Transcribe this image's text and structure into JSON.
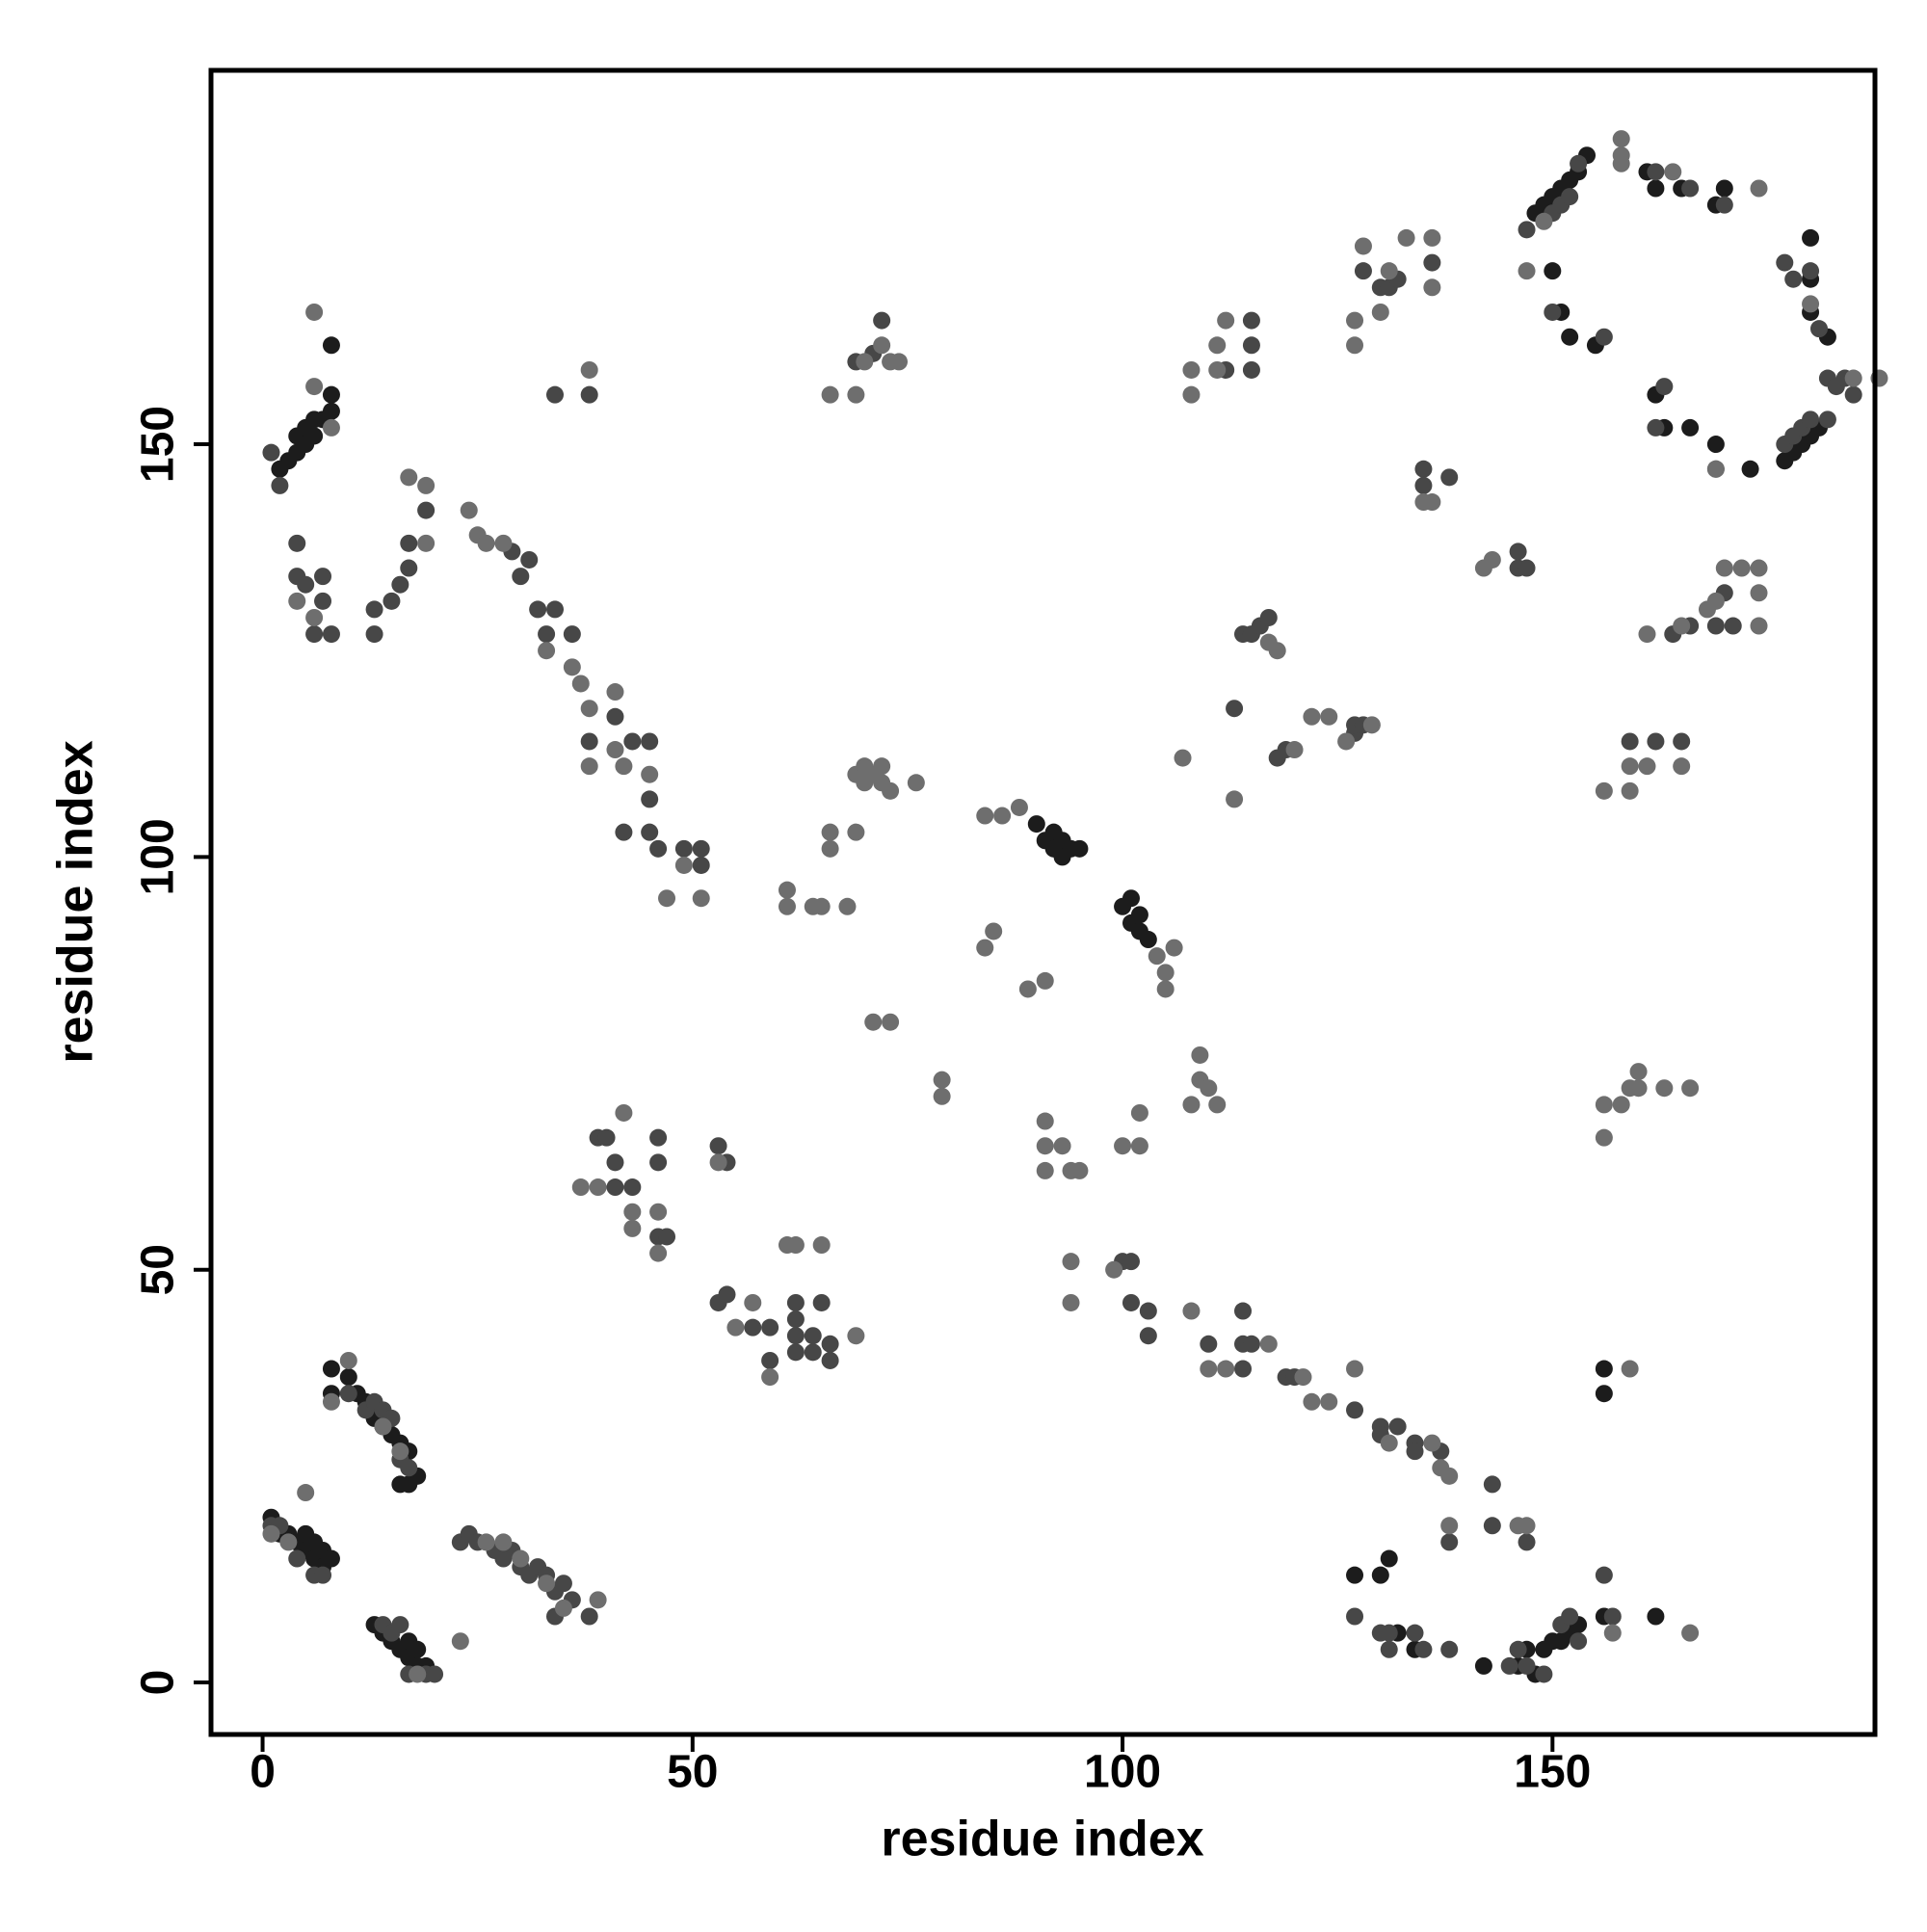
{
  "chart_data": {
    "type": "scatter",
    "xlabel": "residue index",
    "ylabel": "residue index",
    "xlim": [
      -6,
      187.5
    ],
    "ylim": [
      -6.3,
      195.3
    ],
    "xticks": [
      0,
      50,
      100,
      150
    ],
    "yticks": [
      0,
      50,
      100,
      150
    ],
    "series": [
      {
        "color": "#1c1c1c",
        "x": [
          1,
          2,
          3,
          4,
          5,
          5,
          6,
          6,
          7,
          7,
          8,
          8,
          8,
          10,
          11,
          12,
          13,
          14,
          15,
          16,
          17,
          16,
          17,
          18,
          13,
          14,
          15,
          16,
          17,
          17,
          18,
          18,
          19,
          2,
          3,
          4,
          4,
          5,
          5,
          6,
          6,
          7,
          8,
          8,
          8,
          90,
          91,
          92,
          92,
          93,
          93,
          94,
          95,
          100,
          101,
          101,
          102,
          102,
          103,
          148,
          149,
          150,
          151,
          152,
          153,
          154,
          161,
          162,
          165,
          169,
          170,
          150,
          151,
          152,
          155,
          162,
          163,
          166,
          169,
          173,
          177,
          178,
          179,
          180,
          181,
          180,
          180,
          182,
          180,
          150,
          151,
          152,
          153,
          156,
          156,
          156,
          131,
          130,
          127,
          132,
          134,
          142,
          146,
          147,
          148,
          149,
          162
        ],
        "values": [
          20,
          18,
          18,
          17,
          18,
          16,
          17,
          15,
          16,
          14,
          15,
          38,
          35,
          37,
          35,
          34,
          32,
          31,
          30,
          29,
          28,
          24,
          24,
          25,
          7,
          6,
          5,
          4,
          5,
          3,
          4,
          2,
          2,
          147,
          148,
          151,
          149,
          152,
          150,
          153,
          151,
          153,
          154,
          156,
          162,
          104,
          102,
          103,
          101,
          102,
          100,
          101,
          101,
          94,
          95,
          92,
          93,
          91,
          90,
          178,
          179,
          180,
          181,
          182,
          183,
          185,
          183,
          181,
          181,
          179,
          181,
          171,
          166,
          163,
          162,
          156,
          152,
          152,
          150,
          147,
          148,
          149,
          150,
          151,
          152,
          170,
          166,
          163,
          175,
          5,
          5,
          6,
          7,
          8,
          38,
          35,
          15,
          13,
          13,
          6,
          4,
          2,
          2,
          4,
          1,
          4,
          8
        ]
      },
      {
        "color": "#474747",
        "x": [
          1,
          2,
          4,
          6,
          7,
          10,
          12,
          13,
          14,
          15,
          16,
          17,
          14,
          15,
          16,
          17,
          19,
          20,
          23,
          24,
          25,
          27,
          28,
          29,
          30,
          31,
          32,
          33,
          34,
          35,
          36,
          34,
          38,
          1,
          2,
          4,
          4,
          5,
          7,
          7,
          6,
          8,
          13,
          13,
          15,
          16,
          17,
          17,
          19,
          34,
          38,
          29,
          30,
          31,
          32,
          33,
          34,
          36,
          38,
          41,
          43,
          45,
          45,
          42,
          45,
          46,
          49,
          51,
          51,
          39,
          40,
          41,
          41,
          43,
          46,
          46,
          46,
          47,
          53,
          54,
          53,
          54,
          57,
          59,
          59,
          62,
          62,
          62,
          62,
          64,
          64,
          65,
          66,
          66,
          100,
          101,
          101,
          103,
          103,
          110,
          114,
          114,
          114,
          115,
          119,
          120,
          127,
          130,
          130,
          132,
          134,
          134,
          137,
          143,
          138,
          143,
          147,
          127,
          127,
          128,
          118,
          119,
          113,
          114,
          115,
          116,
          117,
          135,
          135,
          138,
          146,
          146,
          147,
          159,
          162,
          165,
          164,
          166,
          169,
          170,
          171,
          112,
          115,
          115,
          115,
          128,
          130,
          131,
          132,
          136,
          72,
          69,
          71,
          147,
          150,
          151,
          152,
          153,
          162,
          166,
          170,
          150,
          156,
          163,
          162,
          169,
          177,
          178,
          179,
          180,
          182,
          177,
          178,
          180,
          181,
          182,
          183,
          184,
          185,
          127,
          130,
          131,
          131,
          134,
          135,
          138,
          145,
          146,
          147,
          149,
          151,
          152,
          153,
          157,
          156
        ],
        "values": [
          19,
          19,
          15,
          13,
          13,
          35,
          33,
          34,
          33,
          32,
          27,
          26,
          7,
          6,
          7,
          1,
          1,
          1,
          17,
          18,
          17,
          16,
          15,
          16,
          14,
          13,
          14,
          13,
          11,
          12,
          10,
          8,
          8,
          149,
          145,
          138,
          134,
          133,
          134,
          131,
          127,
          127,
          127,
          130,
          131,
          133,
          135,
          138,
          142,
          156,
          156,
          137,
          134,
          136,
          130,
          127,
          130,
          127,
          114,
          117,
          114,
          114,
          107,
          103,
          103,
          101,
          101,
          101,
          99,
          66,
          66,
          63,
          60,
          60,
          66,
          63,
          54,
          54,
          65,
          63,
          46,
          47,
          43,
          43,
          39,
          46,
          44,
          42,
          40,
          42,
          40,
          46,
          41,
          39,
          51,
          51,
          46,
          45,
          42,
          41,
          45,
          41,
          38,
          41,
          37,
          37,
          33,
          31,
          30,
          31,
          29,
          28,
          28,
          24,
          17,
          19,
          17,
          115,
          116,
          116,
          112,
          113,
          118,
          127,
          127,
          128,
          129,
          147,
          145,
          146,
          137,
          135,
          135,
          114,
          114,
          114,
          127,
          128,
          128,
          132,
          128,
          159,
          165,
          162,
          159,
          171,
          169,
          169,
          170,
          172,
          165,
          160,
          161,
          176,
          178,
          179,
          180,
          184,
          183,
          181,
          179,
          166,
          163,
          157,
          152,
          147,
          150,
          151,
          152,
          153,
          153,
          172,
          170,
          171,
          164,
          158,
          157,
          158,
          156,
          8,
          6,
          6,
          4,
          6,
          4,
          4,
          2,
          4,
          2,
          1,
          7,
          8,
          5,
          8,
          13
        ]
      },
      {
        "color": "#6e6e6e",
        "x": [
          1,
          3,
          5,
          8,
          10,
          14,
          16,
          18,
          23,
          26,
          28,
          30,
          33,
          39,
          35,
          6,
          6,
          8,
          4,
          6,
          17,
          19,
          19,
          24,
          25,
          26,
          28,
          33,
          36,
          37,
          38,
          38,
          41,
          41,
          42,
          45,
          47,
          49,
          51,
          38,
          61,
          61,
          64,
          65,
          66,
          66,
          68,
          69,
          69,
          70,
          70,
          71,
          72,
          72,
          73,
          76,
          84,
          86,
          88,
          84,
          85,
          89,
          91,
          71,
          73,
          79,
          79,
          104,
          105,
          105,
          106,
          91,
          91,
          91,
          93,
          94,
          95,
          94,
          94,
          99,
          100,
          102,
          102,
          108,
          109,
          109,
          110,
          111,
          37,
          39,
          42,
          43,
          43,
          46,
          46,
          53,
          55,
          57,
          59,
          61,
          62,
          65,
          69,
          108,
          110,
          112,
          117,
          121,
          122,
          124,
          127,
          131,
          136,
          137,
          138,
          138,
          146,
          147,
          159,
          166,
          157,
          122,
          124,
          126,
          129,
          107,
          120,
          113,
          117,
          118,
          135,
          136,
          142,
          143,
          156,
          159,
          159,
          161,
          165,
          161,
          165,
          168,
          169,
          170,
          172,
          174,
          174,
          174,
          156,
          156,
          158,
          159,
          160,
          160,
          163,
          166,
          108,
          108,
          111,
          111,
          112,
          127,
          127,
          128,
          130,
          131,
          133,
          136,
          136,
          66,
          69,
          70,
          72,
          73,
          74,
          147,
          149,
          158,
          158,
          158,
          164,
          174,
          169,
          180,
          185,
          188
        ],
        "values": [
          18,
          17,
          23,
          34,
          39,
          31,
          28,
          1,
          5,
          17,
          17,
          15,
          12,
          10,
          9,
          166,
          157,
          152,
          131,
          129,
          146,
          145,
          138,
          142,
          139,
          138,
          138,
          125,
          123,
          121,
          118,
          111,
          120,
          113,
          111,
          110,
          95,
          99,
          95,
          159,
          96,
          94,
          94,
          94,
          103,
          101,
          94,
          103,
          110,
          111,
          109,
          110,
          111,
          109,
          108,
          109,
          105,
          105,
          106,
          89,
          91,
          84,
          85,
          80,
          80,
          73,
          71,
          88,
          86,
          84,
          89,
          68,
          65,
          62,
          65,
          62,
          62,
          51,
          46,
          50,
          65,
          65,
          69,
          70,
          73,
          76,
          72,
          70,
          60,
          60,
          69,
          57,
          55,
          57,
          52,
          63,
          43,
          46,
          37,
          53,
          53,
          53,
          42,
          45,
          38,
          38,
          41,
          37,
          34,
          34,
          38,
          29,
          29,
          26,
          25,
          19,
          19,
          19,
          38,
          6,
          6,
          117,
          117,
          114,
          116,
          112,
          113,
          107,
          126,
          125,
          143,
          143,
          135,
          136,
          108,
          108,
          111,
          111,
          111,
          127,
          128,
          130,
          131,
          135,
          135,
          135,
          132,
          128,
          66,
          70,
          70,
          72,
          74,
          72,
          72,
          72,
          156,
          159,
          159,
          162,
          165,
          162,
          165,
          174,
          166,
          171,
          175,
          175,
          169,
          156,
          156,
          160,
          162,
          160,
          160,
          171,
          177,
          185,
          184,
          187,
          183,
          181,
          147,
          167,
          158,
          158
        ]
      }
    ]
  }
}
